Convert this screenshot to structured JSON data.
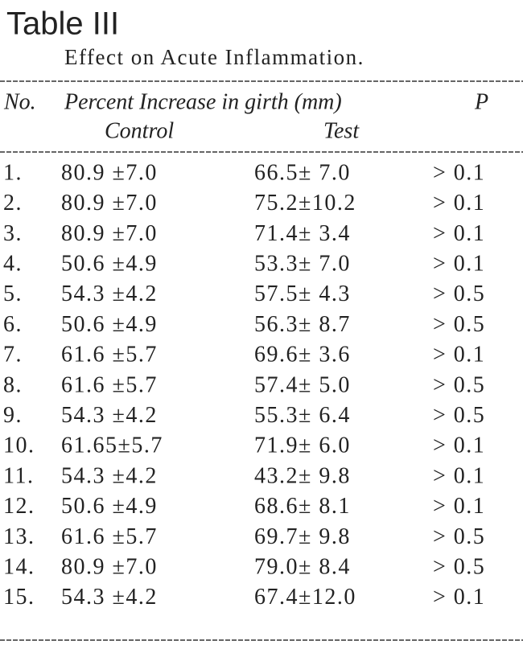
{
  "header": {
    "title": "Table III",
    "subtitle": "Effect on Acute Inflammation."
  },
  "table": {
    "columns": [
      "No.",
      "Percent Increase in girth (mm)",
      "P"
    ],
    "subcolumns": [
      "Control",
      "Test"
    ],
    "rows": [
      [
        "1.",
        "80.9 ±7.0",
        "66.5± 7.0",
        "> 0.1"
      ],
      [
        "2.",
        "80.9 ±7.0",
        "75.2±10.2",
        "> 0.1"
      ],
      [
        "3.",
        "80.9 ±7.0",
        "71.4± 3.4",
        "> 0.1"
      ],
      [
        "4.",
        "50.6 ±4.9",
        "53.3± 7.0",
        "> 0.1"
      ],
      [
        "5.",
        "54.3 ±4.2",
        "57.5± 4.3",
        "> 0.5"
      ],
      [
        "6.",
        "50.6 ±4.9",
        "56.3± 8.7",
        "> 0.5"
      ],
      [
        "7.",
        "61.6 ±5.7",
        "69.6± 3.6",
        "> 0.1"
      ],
      [
        "8.",
        "61.6 ±5.7",
        "57.4± 5.0",
        "> 0.5"
      ],
      [
        "9.",
        "54.3 ±4.2",
        "55.3± 6.4",
        "> 0.5"
      ],
      [
        "10.",
        "61.65±5.7",
        "71.9± 6.0",
        "> 0.1"
      ],
      [
        "11.",
        "54.3 ±4.2",
        "43.2± 9.8",
        "> 0.1"
      ],
      [
        "12.",
        "50.6 ±4.9",
        "68.6± 8.1",
        "> 0.1"
      ],
      [
        "13.",
        "61.6 ±5.7",
        "69.7± 9.8",
        "> 0.5"
      ],
      [
        "14.",
        "80.9 ±7.0",
        "79.0± 8.4",
        "> 0.5"
      ],
      [
        "15.",
        "54.3 ±4.2",
        "67.4±12.0",
        "> 0.1"
      ]
    ]
  }
}
